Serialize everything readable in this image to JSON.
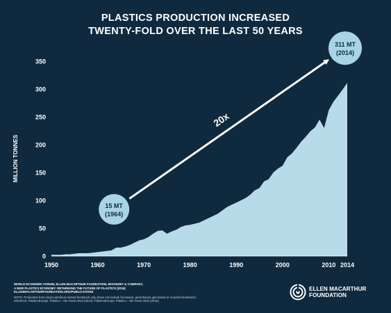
{
  "title": {
    "line1": "PLASTICS PRODUCTION INCREASED",
    "line2": "TWENTY-FOLD OVER THE LAST 50 YEARS"
  },
  "colors": {
    "background": "#0f2a3f",
    "area": "#b7dbe8",
    "bubble": "#a8d4e6",
    "text": "#ffffff",
    "bubble_text": "#0f2a3f"
  },
  "annotations": {
    "start_line1": "15 MT",
    "start_line2": "(1964)",
    "end_line1": "311 MT",
    "end_line2": "(2014)",
    "growth": "20x"
  },
  "chart_data": {
    "type": "area",
    "ylabel": "MILLION TONNES",
    "xlabel": "",
    "xlim": [
      1950,
      2014
    ],
    "ylim": [
      0,
      350
    ],
    "xticks": [
      "1950",
      "1960",
      "1970",
      "1980",
      "1990",
      "2000",
      "2010",
      "2014"
    ],
    "yticks": [
      "0",
      "50",
      "100",
      "150",
      "200",
      "250",
      "300",
      "350"
    ],
    "grid": false,
    "x": [
      1950,
      1951,
      1952,
      1953,
      1954,
      1955,
      1956,
      1957,
      1958,
      1959,
      1960,
      1961,
      1962,
      1963,
      1964,
      1965,
      1966,
      1967,
      1968,
      1969,
      1970,
      1971,
      1972,
      1973,
      1974,
      1975,
      1976,
      1977,
      1978,
      1979,
      1980,
      1981,
      1982,
      1983,
      1984,
      1985,
      1986,
      1987,
      1988,
      1989,
      1990,
      1991,
      1992,
      1993,
      1994,
      1995,
      1996,
      1997,
      1998,
      1999,
      2000,
      2001,
      2002,
      2003,
      2004,
      2005,
      2006,
      2007,
      2008,
      2009,
      2010,
      2011,
      2012,
      2013,
      2014
    ],
    "y": [
      2,
      2,
      2,
      3,
      3,
      4,
      5,
      5,
      5,
      6,
      7,
      8,
      9,
      10,
      15,
      15,
      17,
      20,
      24,
      28,
      30,
      34,
      40,
      45,
      46,
      40,
      44,
      47,
      52,
      55,
      56,
      58,
      60,
      64,
      68,
      72,
      76,
      82,
      88,
      92,
      96,
      100,
      104,
      110,
      118,
      122,
      134,
      138,
      150,
      157,
      162,
      177,
      184,
      194,
      205,
      214,
      224,
      231,
      245,
      230,
      262,
      277,
      288,
      299,
      311
    ]
  },
  "footer": {
    "source_line1": "WORLD ECONOMIC FORUM, ELLEN MACARTHUR FOUNDATION, MCKINSEY & COMPANY,",
    "source_line2": "A NEW PLASTICS ECONOMY: RETHINKING THE FUTURE OF PLASTICS (2016)",
    "source_line3": "ELLENMACARTHURFOUNDATION.ORG/PUBLICATIONS",
    "note": "NOTE: Production from virgin petroleum-based feedstock only (does not include bio-based, greenhouse gas-based or recycled feedstock)",
    "source": "SOURCE: PlasticsEurope, Plastics – the Facts 2013 (2013); PlasticsEurope, Plastics – the Facts 2015 (2015)."
  },
  "logo": {
    "line1": "ELLEN MACARTHUR",
    "line2": "FOUNDATION"
  }
}
